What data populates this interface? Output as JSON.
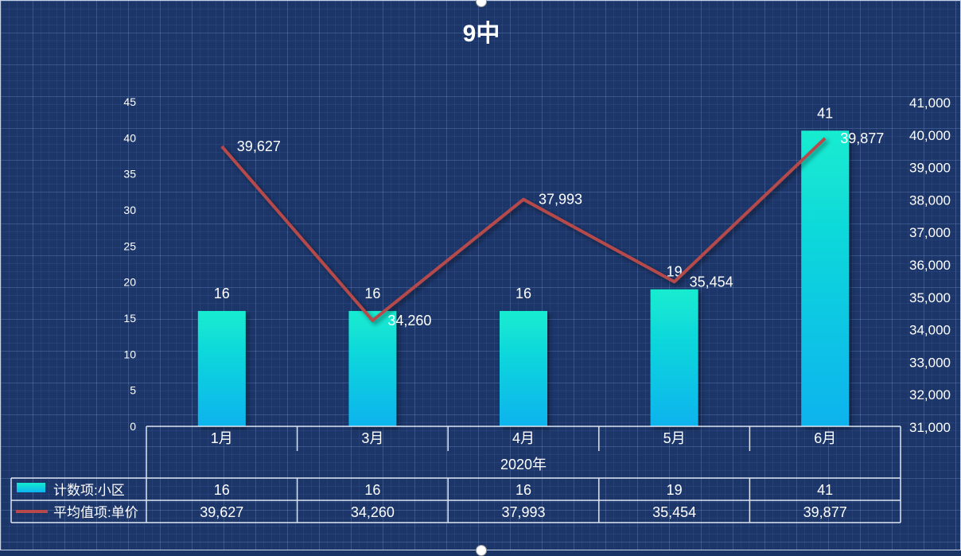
{
  "title": "9中",
  "colors": {
    "bar_top": "#13ecd0",
    "bar_bottom": "#0db3ee",
    "line": "#b64a4a",
    "text": "#ffffff",
    "table_border": "#dfe6f2"
  },
  "chart_data": {
    "type": "bar",
    "categories": [
      "1月",
      "3月",
      "4月",
      "5月",
      "6月"
    ],
    "group_label": "2020年",
    "series": [
      {
        "name": "计数项:小区",
        "type": "bar",
        "axis": "left",
        "values": [
          16,
          16,
          16,
          19,
          41
        ],
        "labels": [
          "16",
          "16",
          "16",
          "19",
          "41"
        ]
      },
      {
        "name": "平均值项:单价",
        "type": "line",
        "axis": "right",
        "values": [
          39627,
          34260,
          37993,
          35454,
          39877
        ],
        "labels": [
          "39,627",
          "34,260",
          "37,993",
          "35,454",
          "39,877"
        ]
      }
    ],
    "y_left": {
      "lim": [
        0,
        45
      ],
      "ticks": [
        "0",
        "5",
        "10",
        "15",
        "20",
        "25",
        "30",
        "35",
        "40",
        "45"
      ]
    },
    "y_right": {
      "lim": [
        31000,
        41000
      ],
      "ticks": [
        "31,000",
        "32,000",
        "33,000",
        "34,000",
        "35,000",
        "36,000",
        "37,000",
        "38,000",
        "39,000",
        "40,000",
        "41,000"
      ]
    },
    "data_table": true,
    "legend": "in data table"
  }
}
